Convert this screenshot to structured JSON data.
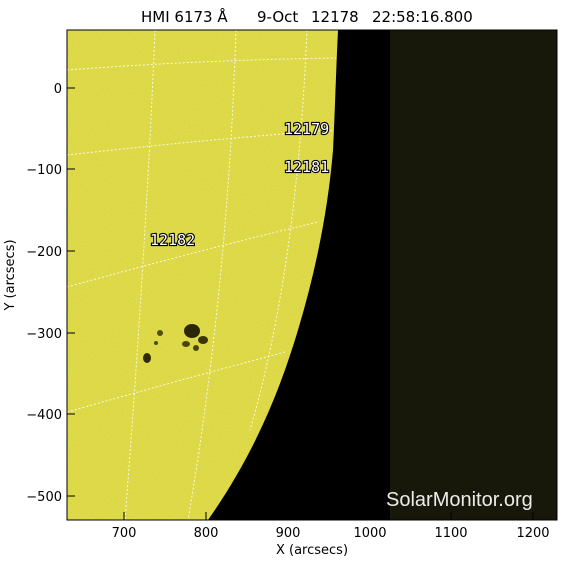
{
  "title": {
    "instrument": "HMI 6173 Å",
    "date_fragment": "9-Oct",
    "overlapped_label": "12178",
    "time": "22:58:16.800"
  },
  "x_axis": {
    "label": "X (arcsecs)",
    "ticks": [
      "700",
      "800",
      "900",
      "1000",
      "1100",
      "1200"
    ],
    "range": [
      632,
      1232
    ]
  },
  "y_axis": {
    "label": "Y (arcsecs)",
    "ticks": [
      "0",
      "−100",
      "−200",
      "−300",
      "−400",
      "−500"
    ],
    "range": [
      -528,
      72
    ]
  },
  "active_regions": [
    "12179",
    "12181",
    "12182"
  ],
  "watermark": "SolarMonitor.org",
  "colors": {
    "solar_disk": "#e6e24a",
    "space": "#000000",
    "offpointing_panel": "#17170a",
    "grid_lines": "#ffffff"
  }
}
